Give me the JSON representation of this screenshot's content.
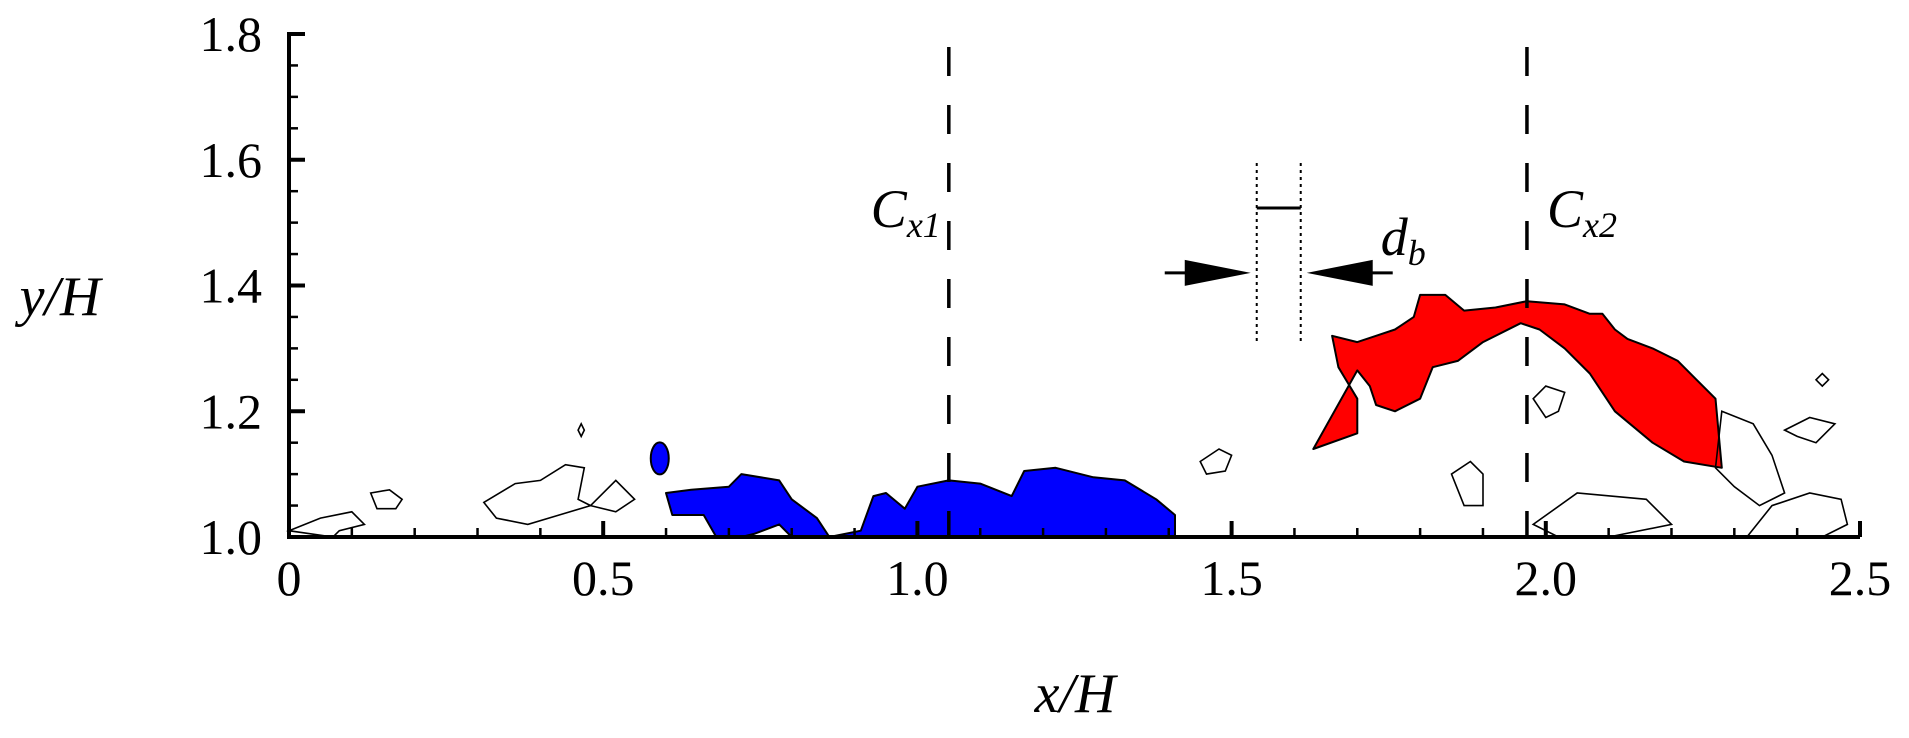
{
  "chart_data": {
    "type": "heatmap",
    "subtype": "contour_map",
    "title": "",
    "xlabel": "x/H",
    "ylabel": "y/H",
    "xlim": [
      0,
      2.5
    ],
    "ylim": [
      1.0,
      1.8
    ],
    "xticks": [
      0,
      0.5,
      1.0,
      1.5,
      2.0,
      2.5
    ],
    "xtick_labels": [
      "0",
      "0.5",
      "1.0",
      "1.5",
      "2.0",
      "2.5"
    ],
    "yticks": [
      1.0,
      1.2,
      1.4,
      1.6,
      1.8
    ],
    "ytick_labels": [
      "1.0",
      "1.2",
      "1.4",
      "1.6",
      "1.8"
    ],
    "x_minor_step": 0.1,
    "y_minor_step": 0.05,
    "grid": false,
    "legend": null,
    "annotations": [
      {
        "label": "C",
        "subscript": "x1",
        "type": "dashed-vertical-line",
        "x": 1.05
      },
      {
        "label": "C",
        "subscript": "x2",
        "type": "dashed-vertical-line",
        "x": 1.97
      },
      {
        "label": "d",
        "subscript": "b",
        "type": "dimension-arrows",
        "x_left": 1.54,
        "x_right": 1.61,
        "y": 1.42
      }
    ],
    "regions": [
      {
        "name": "negative-structure",
        "color": "#0000ff",
        "approx_x_range": [
          0.6,
          1.42
        ],
        "approx_y_range": [
          1.0,
          1.11
        ],
        "outline": [
          [
            0.61,
            1.035
          ],
          [
            0.6,
            1.07
          ],
          [
            0.64,
            1.075
          ],
          [
            0.7,
            1.08
          ],
          [
            0.72,
            1.1
          ],
          [
            0.78,
            1.09
          ],
          [
            0.8,
            1.06
          ],
          [
            0.84,
            1.03
          ],
          [
            0.86,
            1.0
          ],
          [
            0.91,
            1.01
          ],
          [
            0.93,
            1.065
          ],
          [
            0.95,
            1.07
          ],
          [
            0.98,
            1.045
          ],
          [
            1.0,
            1.08
          ],
          [
            1.05,
            1.09
          ],
          [
            1.1,
            1.085
          ],
          [
            1.15,
            1.065
          ],
          [
            1.17,
            1.105
          ],
          [
            1.22,
            1.11
          ],
          [
            1.28,
            1.095
          ],
          [
            1.33,
            1.09
          ],
          [
            1.38,
            1.06
          ],
          [
            1.41,
            1.035
          ],
          [
            1.41,
            1.0
          ],
          [
            0.8,
            1.0
          ],
          [
            0.78,
            1.02
          ],
          [
            0.74,
            1.005
          ],
          [
            0.72,
            1.0
          ],
          [
            0.68,
            1.0
          ],
          [
            0.66,
            1.035
          ]
        ]
      },
      {
        "name": "negative-blob-small",
        "color": "#0000ff",
        "approx_center": [
          0.59,
          1.125
        ]
      },
      {
        "name": "positive-structure",
        "color": "#ff0000",
        "approx_x_range": [
          1.62,
          2.28
        ],
        "approx_y_range": [
          1.13,
          1.39
        ],
        "outline": [
          [
            1.63,
            1.14
          ],
          [
            1.7,
            1.165
          ],
          [
            1.7,
            1.22
          ],
          [
            1.67,
            1.27
          ],
          [
            1.66,
            1.32
          ],
          [
            1.7,
            1.31
          ],
          [
            1.73,
            1.32
          ],
          [
            1.76,
            1.33
          ],
          [
            1.79,
            1.35
          ],
          [
            1.8,
            1.385
          ],
          [
            1.84,
            1.385
          ],
          [
            1.87,
            1.36
          ],
          [
            1.92,
            1.365
          ],
          [
            1.97,
            1.375
          ],
          [
            2.03,
            1.37
          ],
          [
            2.07,
            1.355
          ],
          [
            2.09,
            1.355
          ],
          [
            2.11,
            1.33
          ],
          [
            2.13,
            1.315
          ],
          [
            2.17,
            1.3
          ],
          [
            2.21,
            1.28
          ],
          [
            2.24,
            1.25
          ],
          [
            2.27,
            1.22
          ],
          [
            2.28,
            1.11
          ],
          [
            2.22,
            1.12
          ],
          [
            2.17,
            1.15
          ],
          [
            2.11,
            1.2
          ],
          [
            2.07,
            1.26
          ],
          [
            2.03,
            1.3
          ],
          [
            1.99,
            1.33
          ],
          [
            1.96,
            1.34
          ],
          [
            1.9,
            1.31
          ],
          [
            1.86,
            1.28
          ],
          [
            1.82,
            1.27
          ],
          [
            1.8,
            1.22
          ],
          [
            1.76,
            1.2
          ],
          [
            1.73,
            1.21
          ],
          [
            1.72,
            1.24
          ],
          [
            1.7,
            1.265
          ]
        ]
      }
    ],
    "contour_line_color": "#000000"
  }
}
